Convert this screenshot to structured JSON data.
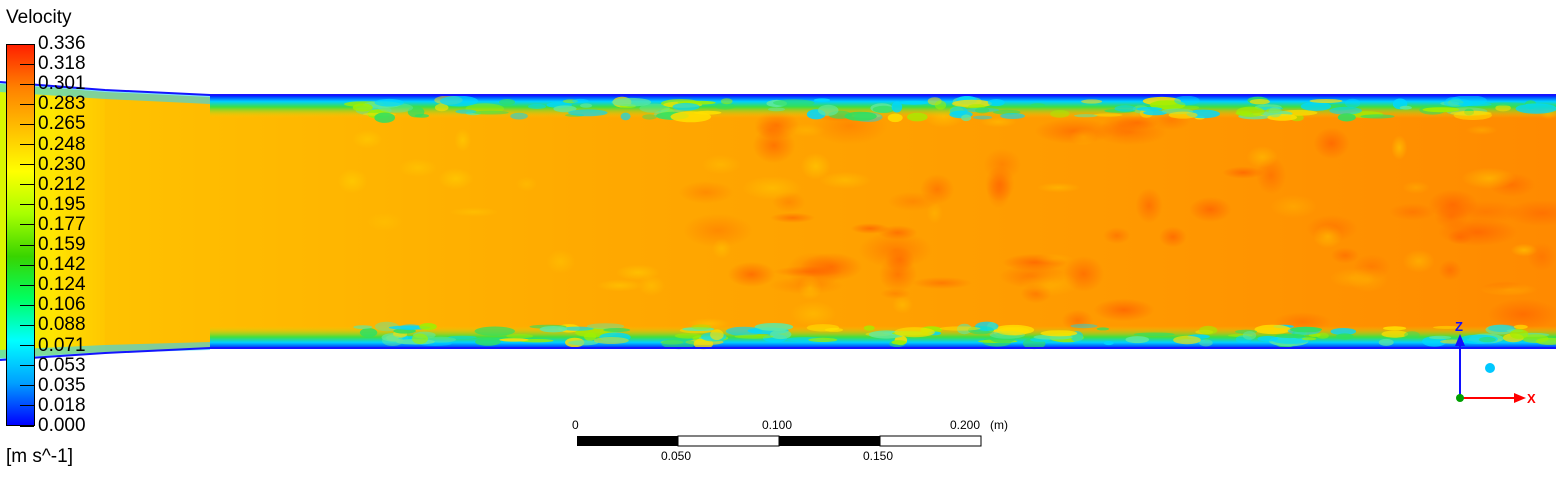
{
  "legend": {
    "title": "Velocity",
    "units": "[m s^-1]",
    "ticks": [
      "0.336",
      "0.318",
      "0.301",
      "0.283",
      "0.265",
      "0.248",
      "0.230",
      "0.212",
      "0.195",
      "0.177",
      "0.159",
      "0.142",
      "0.124",
      "0.106",
      "0.088",
      "0.071",
      "0.053",
      "0.035",
      "0.018",
      "0.000"
    ],
    "range": [
      0.0,
      0.336
    ],
    "colormap": [
      "#0000ff",
      "#00a0ff",
      "#00ffff",
      "#00ff60",
      "#39d400",
      "#a8ff00",
      "#ffff00",
      "#ffc000",
      "#ff8000",
      "#ff2000"
    ]
  },
  "scale_bar": {
    "top_labels": [
      "0",
      "0.100",
      "0.200"
    ],
    "bottom_labels": [
      "0.050",
      "0.150"
    ],
    "unit": "(m)"
  },
  "axes_triad": {
    "z_label": "Z",
    "x_label": "X",
    "colors": {
      "z": "#1010ff",
      "x": "#ff0000",
      "origin": "#00a000",
      "dot": "#00c8ff"
    }
  },
  "field": {
    "description_colors": {
      "core": "#ffa500",
      "inlet": "#ffd200",
      "wall": "#00aa00",
      "edge": "#1414ff"
    }
  }
}
